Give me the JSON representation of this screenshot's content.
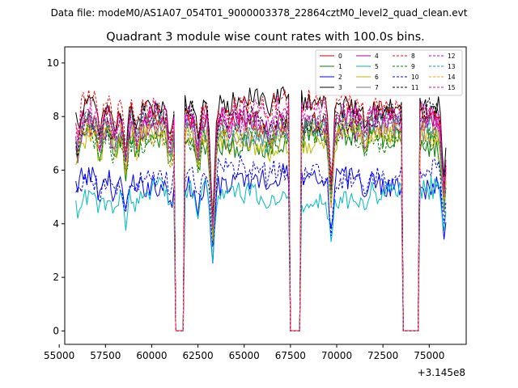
{
  "suptitle": "Data file: modeM0/AS1A07_054T01_9000003378_22864cztM0_level2_quad_clean.evt",
  "chart_data": {
    "type": "line",
    "title": "Quadrant 3 module wise count rates with 100.0s bins.",
    "xlabel": "",
    "ylabel": "",
    "x_offset_label": "+3.145e8",
    "xlim": [
      55300,
      77000
    ],
    "ylim": [
      -0.5,
      10.6
    ],
    "xticks": [
      55000,
      57500,
      60000,
      62500,
      65000,
      67500,
      70000,
      72500,
      75000
    ],
    "xtick_labels": [
      "55000",
      "57500",
      "60000",
      "62500",
      "65000",
      "67500",
      "70000",
      "72500",
      "75000"
    ],
    "yticks": [
      0,
      2,
      4,
      6,
      8,
      10
    ],
    "ytick_labels": [
      "0",
      "2",
      "4",
      "6",
      "8",
      "10"
    ],
    "grid": false,
    "legend_position": "top-right",
    "legend_columns": 4,
    "x_start": 55900,
    "x_step": 100,
    "n_points": 201,
    "gaps": [
      [
        61300,
        61700
      ],
      [
        67500,
        68000
      ],
      [
        73600,
        74400
      ]
    ],
    "dips": [
      [
        56000,
        0.12,
        150
      ],
      [
        57200,
        0.1,
        180
      ],
      [
        58000,
        0.1,
        200
      ],
      [
        58600,
        0.2,
        150
      ],
      [
        59200,
        0.1,
        150
      ],
      [
        61000,
        0.15,
        150
      ],
      [
        62500,
        0.15,
        150
      ],
      [
        63300,
        0.5,
        150
      ],
      [
        64200,
        0.05,
        150
      ],
      [
        66300,
        0.06,
        200
      ],
      [
        69700,
        0.35,
        150
      ],
      [
        71500,
        0.05,
        150
      ],
      [
        75800,
        0.35,
        150
      ]
    ],
    "series": [
      {
        "name": "0",
        "color": "#d00000",
        "dash": "solid",
        "level": 7.9
      },
      {
        "name": "1",
        "color": "#008000",
        "dash": "solid",
        "level": 7.1
      },
      {
        "name": "2",
        "color": "#0000ff",
        "dash": "solid",
        "level": 5.6
      },
      {
        "name": "3",
        "color": "#000000",
        "dash": "solid",
        "level": 8.5
      },
      {
        "name": "4",
        "color": "#aa00aa",
        "dash": "solid",
        "level": 7.7
      },
      {
        "name": "5",
        "color": "#00bbbb",
        "dash": "solid",
        "level": 5.1
      },
      {
        "name": "6",
        "color": "#bbbb00",
        "dash": "solid",
        "level": 7.2
      },
      {
        "name": "7",
        "color": "#777777",
        "dash": "solid",
        "level": 7.5
      },
      {
        "name": "8",
        "color": "#ff0000",
        "dash": "dashed",
        "level": 8.4
      },
      {
        "name": "9",
        "color": "#008000",
        "dash": "dashed",
        "level": 7.3
      },
      {
        "name": "10",
        "color": "#0000ff",
        "dash": "dashed",
        "level": 5.9
      },
      {
        "name": "11",
        "color": "#000000",
        "dash": "dashed",
        "level": 8.0
      },
      {
        "name": "12",
        "color": "#cc00cc",
        "dash": "dashed",
        "level": 7.9
      },
      {
        "name": "13",
        "color": "#00aaaa",
        "dash": "dashed",
        "level": 7.6
      },
      {
        "name": "14",
        "color": "#ffaa00",
        "dash": "dashed",
        "level": 7.4
      },
      {
        "name": "15",
        "color": "#ff00aa",
        "dash": "dashed",
        "level": 8.1
      }
    ]
  }
}
